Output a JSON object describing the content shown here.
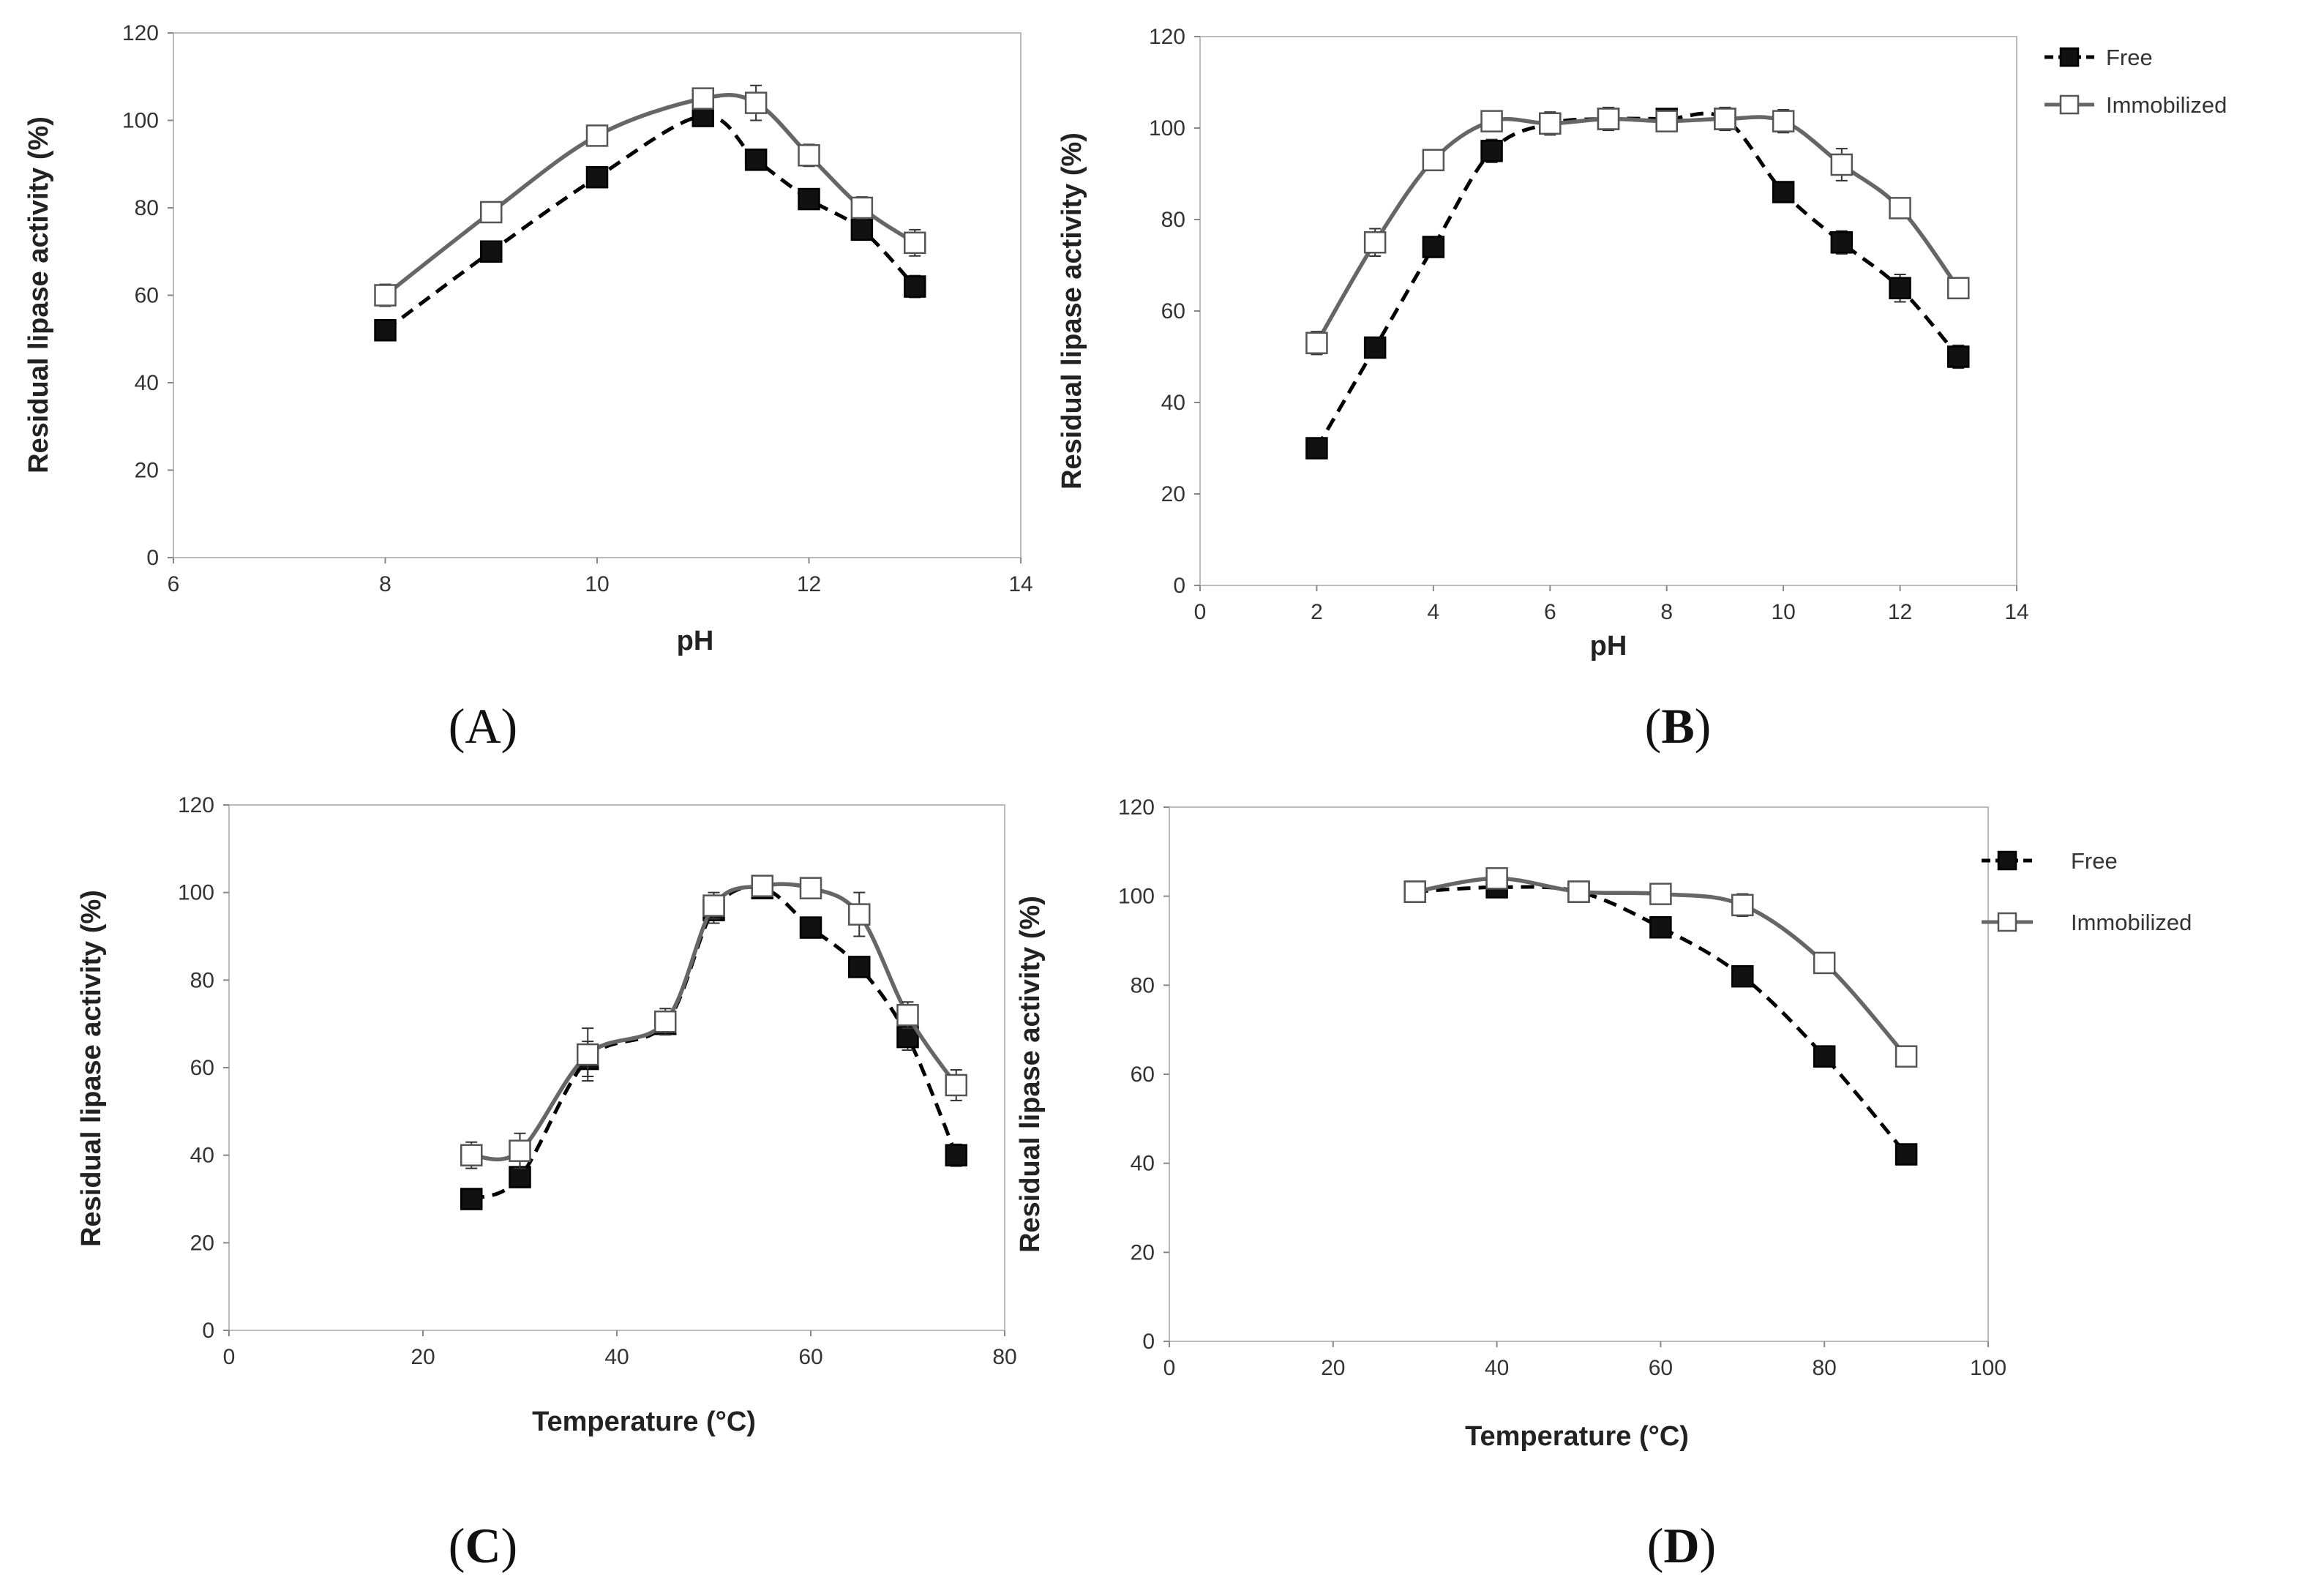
{
  "chart_data": [
    {
      "panel": "(A)",
      "type": "line",
      "xlabel": "pH",
      "ylabel": "Residual lipase activity (%)",
      "xlim": [
        6,
        14
      ],
      "ylim": [
        0,
        120
      ],
      "xticks": [
        6,
        8,
        10,
        12,
        14
      ],
      "yticks": [
        0,
        20,
        40,
        60,
        80,
        100,
        120
      ],
      "series": [
        {
          "name": "Free",
          "x": [
            8,
            9,
            10,
            11,
            11.5,
            12,
            12.5,
            13
          ],
          "values": [
            52,
            70,
            87,
            101,
            91,
            82,
            75,
            62
          ],
          "errors": [
            1.5,
            2,
            1.5,
            2,
            2,
            2,
            2,
            2.5
          ]
        },
        {
          "name": "Immobilized",
          "x": [
            8,
            9,
            10,
            11,
            11.5,
            12,
            12.5,
            13
          ],
          "values": [
            60,
            79,
            96.5,
            105,
            104,
            92,
            80,
            72
          ],
          "errors": [
            2.5,
            2,
            2,
            2,
            4,
            2.5,
            2.5,
            3
          ]
        }
      ],
      "legend": null
    },
    {
      "panel": "(B)",
      "type": "line",
      "xlabel": "pH",
      "ylabel": "Residual lipase activity (%)",
      "xlim": [
        0,
        14
      ],
      "ylim": [
        0,
        120
      ],
      "xticks": [
        0,
        2,
        4,
        6,
        8,
        10,
        12,
        14
      ],
      "yticks": [
        0,
        20,
        40,
        60,
        80,
        100,
        120
      ],
      "series": [
        {
          "name": "Free",
          "x": [
            2,
            3,
            4,
            5,
            6,
            7,
            8,
            9,
            10,
            11,
            12,
            13
          ],
          "values": [
            30,
            52,
            74,
            95,
            101,
            102,
            102,
            102,
            86,
            75,
            65,
            50
          ],
          "errors": [
            1.5,
            1.5,
            1.5,
            2.5,
            2,
            2,
            1.5,
            2,
            1.5,
            2.5,
            3,
            2.5
          ]
        },
        {
          "name": "Immobilized",
          "x": [
            2,
            3,
            4,
            5,
            6,
            7,
            8,
            9,
            10,
            11,
            12,
            13
          ],
          "values": [
            53,
            75,
            93,
            101.5,
            101,
            102,
            101.5,
            102,
            101.5,
            92,
            82.5,
            65
          ],
          "errors": [
            2.5,
            3,
            2,
            2,
            2.5,
            2.5,
            2,
            2.5,
            2.5,
            3.5,
            2,
            1.5
          ]
        }
      ],
      "legend": {
        "position": "top-right",
        "entries": [
          "Free",
          "Immobilized"
        ]
      }
    },
    {
      "panel": "(C)",
      "type": "line",
      "xlabel": "Temperature (°C)",
      "ylabel": "Residual lipase activity (%)",
      "xlim": [
        0,
        80
      ],
      "ylim": [
        0,
        120
      ],
      "xticks": [
        0,
        20,
        40,
        60,
        80
      ],
      "yticks": [
        0,
        20,
        40,
        60,
        80,
        100,
        120
      ],
      "series": [
        {
          "name": "Free",
          "x": [
            25,
            30,
            37,
            45,
            50,
            55,
            60,
            65,
            70,
            75
          ],
          "values": [
            30,
            35,
            62,
            70,
            96,
            101,
            92,
            83,
            67,
            40
          ],
          "errors": [
            1.5,
            2,
            4,
            2,
            3,
            1.5,
            2,
            2,
            3,
            2.5
          ]
        },
        {
          "name": "Immobilized",
          "x": [
            25,
            30,
            37,
            45,
            50,
            55,
            60,
            65,
            70,
            75
          ],
          "values": [
            40,
            41,
            63,
            70.5,
            97,
            101.5,
            101,
            95,
            72,
            56
          ],
          "errors": [
            3,
            4,
            6,
            3,
            3,
            2,
            2,
            5,
            3,
            3.5
          ]
        }
      ],
      "legend": null
    },
    {
      "panel": "(D)",
      "type": "line",
      "xlabel": "Temperature (°C)",
      "ylabel": "Residual lipase activity (%)",
      "xlim": [
        0,
        100
      ],
      "ylim": [
        0,
        120
      ],
      "xticks": [
        0,
        20,
        40,
        60,
        80,
        100
      ],
      "yticks": [
        0,
        20,
        40,
        60,
        80,
        100,
        120
      ],
      "series": [
        {
          "name": "Free",
          "x": [
            30,
            40,
            50,
            60,
            70,
            80,
            90
          ],
          "values": [
            101,
            102,
            101,
            93,
            82,
            64,
            42
          ],
          "errors": [
            1.5,
            2,
            1.5,
            1.5,
            2,
            1.5,
            2
          ]
        },
        {
          "name": "Immobilized",
          "x": [
            30,
            40,
            50,
            60,
            70,
            80,
            90
          ],
          "values": [
            101,
            104,
            101,
            100.5,
            98,
            85,
            64
          ],
          "errors": [
            2,
            2,
            1.5,
            1.5,
            2.5,
            2,
            2
          ]
        }
      ],
      "legend": {
        "position": "right",
        "entries": [
          "Free",
          "Immobilized"
        ]
      }
    }
  ],
  "panel_labels": {
    "a": {
      "open": "(",
      "letter": "A",
      "close": ")"
    },
    "b": {
      "open": "(",
      "letter": "B",
      "close": ")"
    },
    "c": {
      "open": "(",
      "letter": "C",
      "close": ")"
    },
    "d": {
      "open": "(",
      "letter": "D",
      "close": ")"
    }
  },
  "colors": {
    "free": "#000000",
    "immobilized": "#666666",
    "marker_fill_free": "#111111",
    "marker_fill_immobilized": "#ffffff",
    "plot_border": "#bbbbbb",
    "axis": "#888888"
  }
}
